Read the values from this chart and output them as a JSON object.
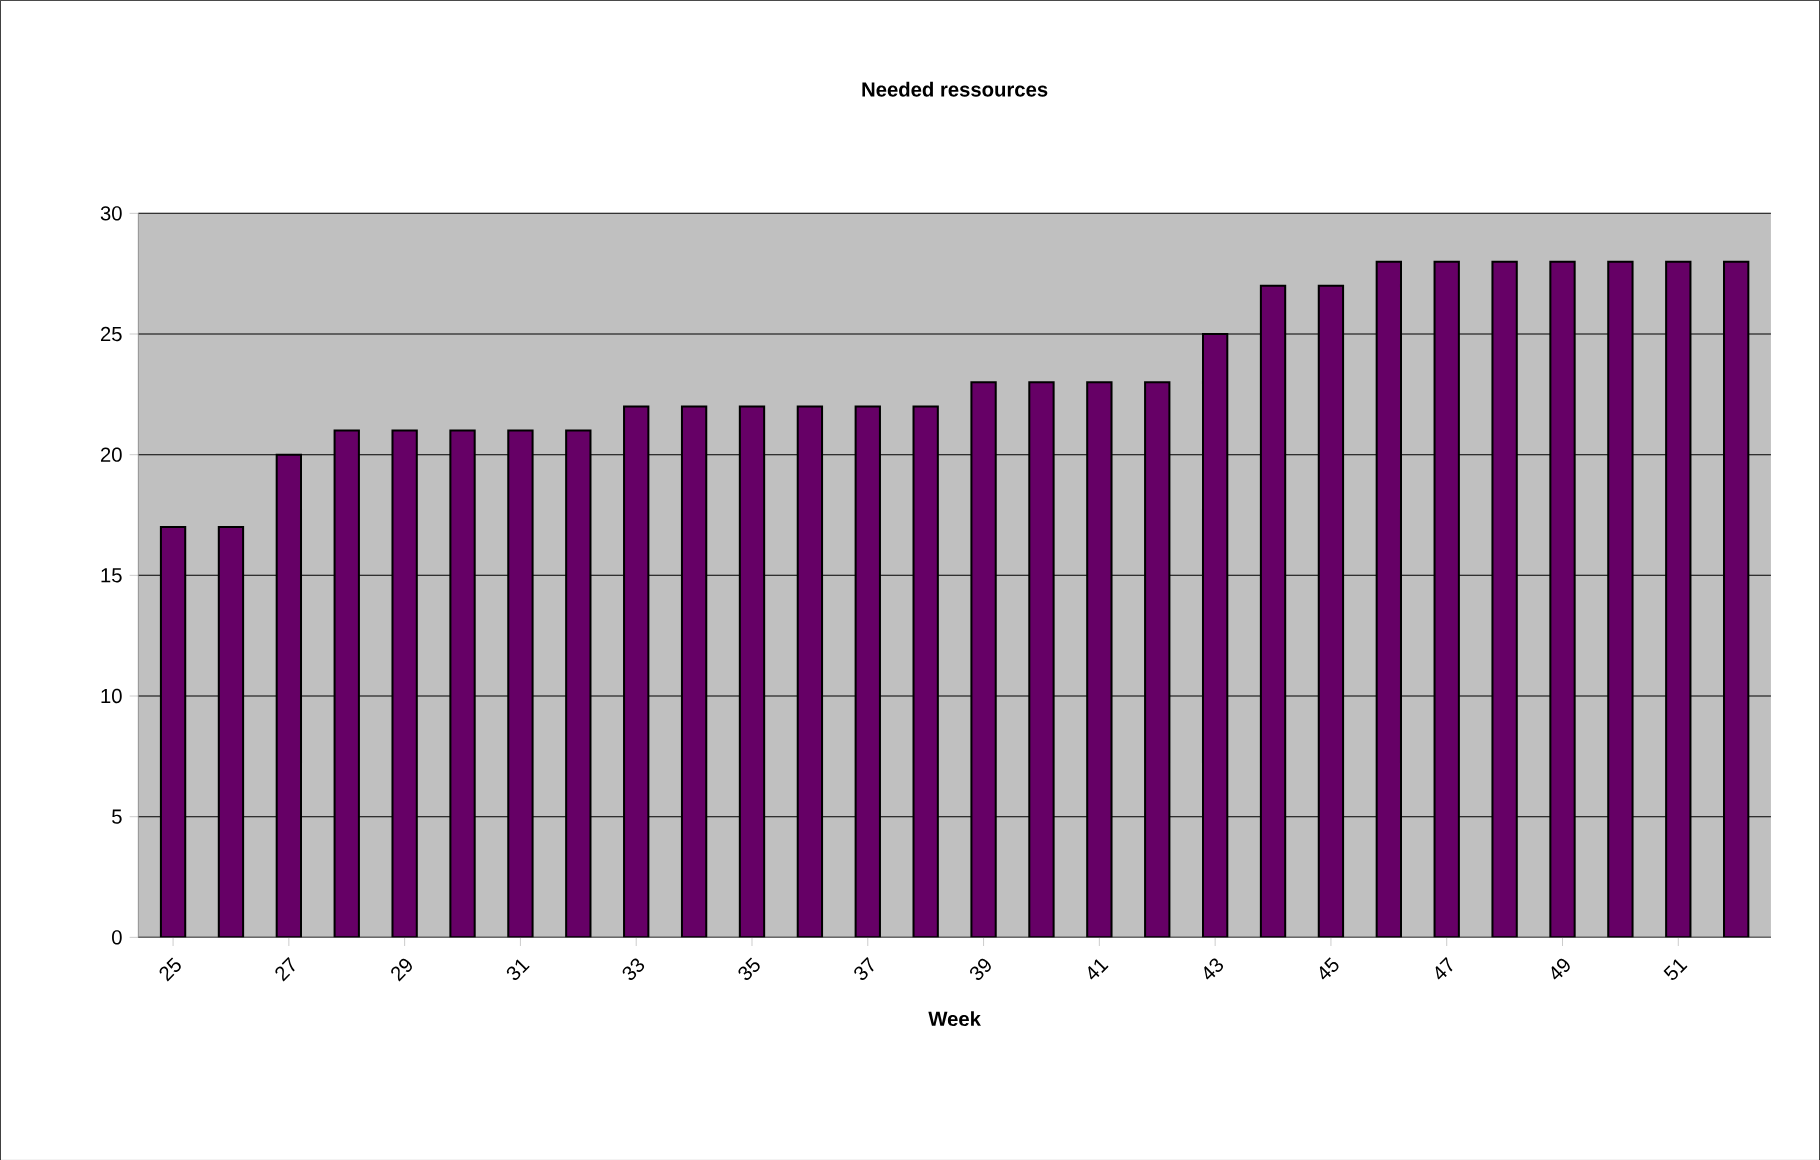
{
  "chart_data": {
    "type": "bar",
    "title": "Needed ressources",
    "xlabel": "Week",
    "categories": [
      "25",
      null,
      "27",
      null,
      "29",
      null,
      "31",
      null,
      "33",
      null,
      "35",
      null,
      "37",
      null,
      "39",
      null,
      "41",
      null,
      "43",
      null,
      "45",
      null,
      "47",
      null,
      "49",
      null,
      "51",
      null
    ],
    "values": [
      17,
      17,
      20,
      21,
      21,
      21,
      21,
      21,
      22,
      22,
      22,
      22,
      22,
      22,
      23,
      23,
      23,
      23,
      25,
      27,
      27,
      28,
      28,
      28,
      28,
      28,
      28,
      28
    ],
    "color": "#660066",
    "ylim": [
      0,
      30
    ],
    "yticks": [
      0,
      5,
      10,
      15,
      20,
      25,
      30
    ],
    "grid": "y"
  }
}
